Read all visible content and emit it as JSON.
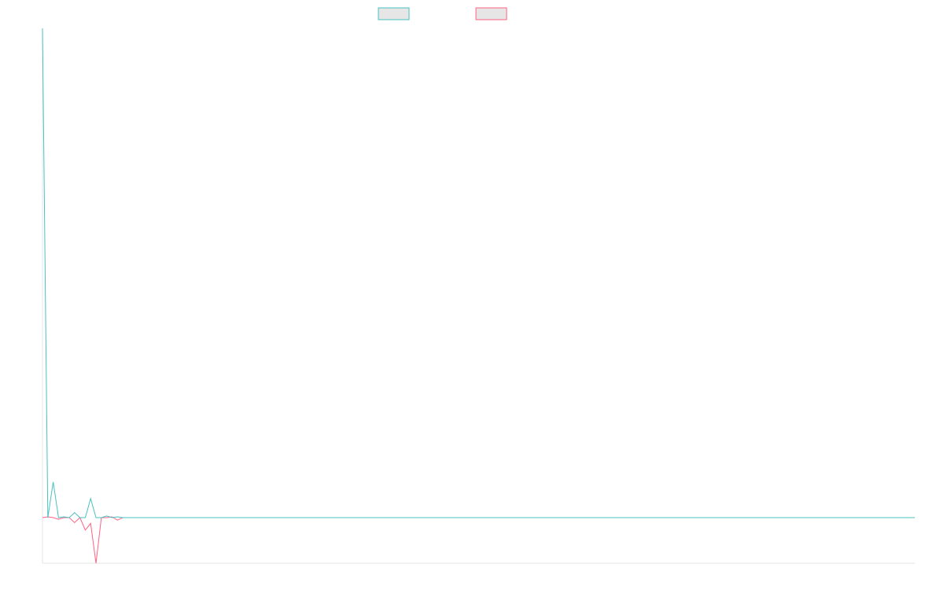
{
  "chart_data": {
    "type": "line",
    "title": "",
    "xlabel": "",
    "ylabel": "",
    "ylim": [
      -5.5,
      59
    ],
    "grid": false,
    "legend_position": "top-center",
    "x_count": 164,
    "series": [
      {
        "name": "",
        "color": "#4bc0c0",
        "legend_fill": "#e6e6e6",
        "values": [
          59,
          0,
          4.3,
          0,
          0.1,
          0,
          0.6,
          0,
          0,
          2.3,
          0,
          0,
          0.2,
          0,
          0.1,
          0,
          0
        ]
      },
      {
        "name": "",
        "color": "#ff6384",
        "legend_fill": "#e6e6e6",
        "values": [
          0,
          0.1,
          0,
          -0.2,
          0,
          0,
          -0.6,
          0,
          -1.5,
          -0.7,
          -5.5,
          0,
          0,
          0.1,
          -0.3,
          0,
          0
        ]
      }
    ],
    "tail_value": 0
  }
}
